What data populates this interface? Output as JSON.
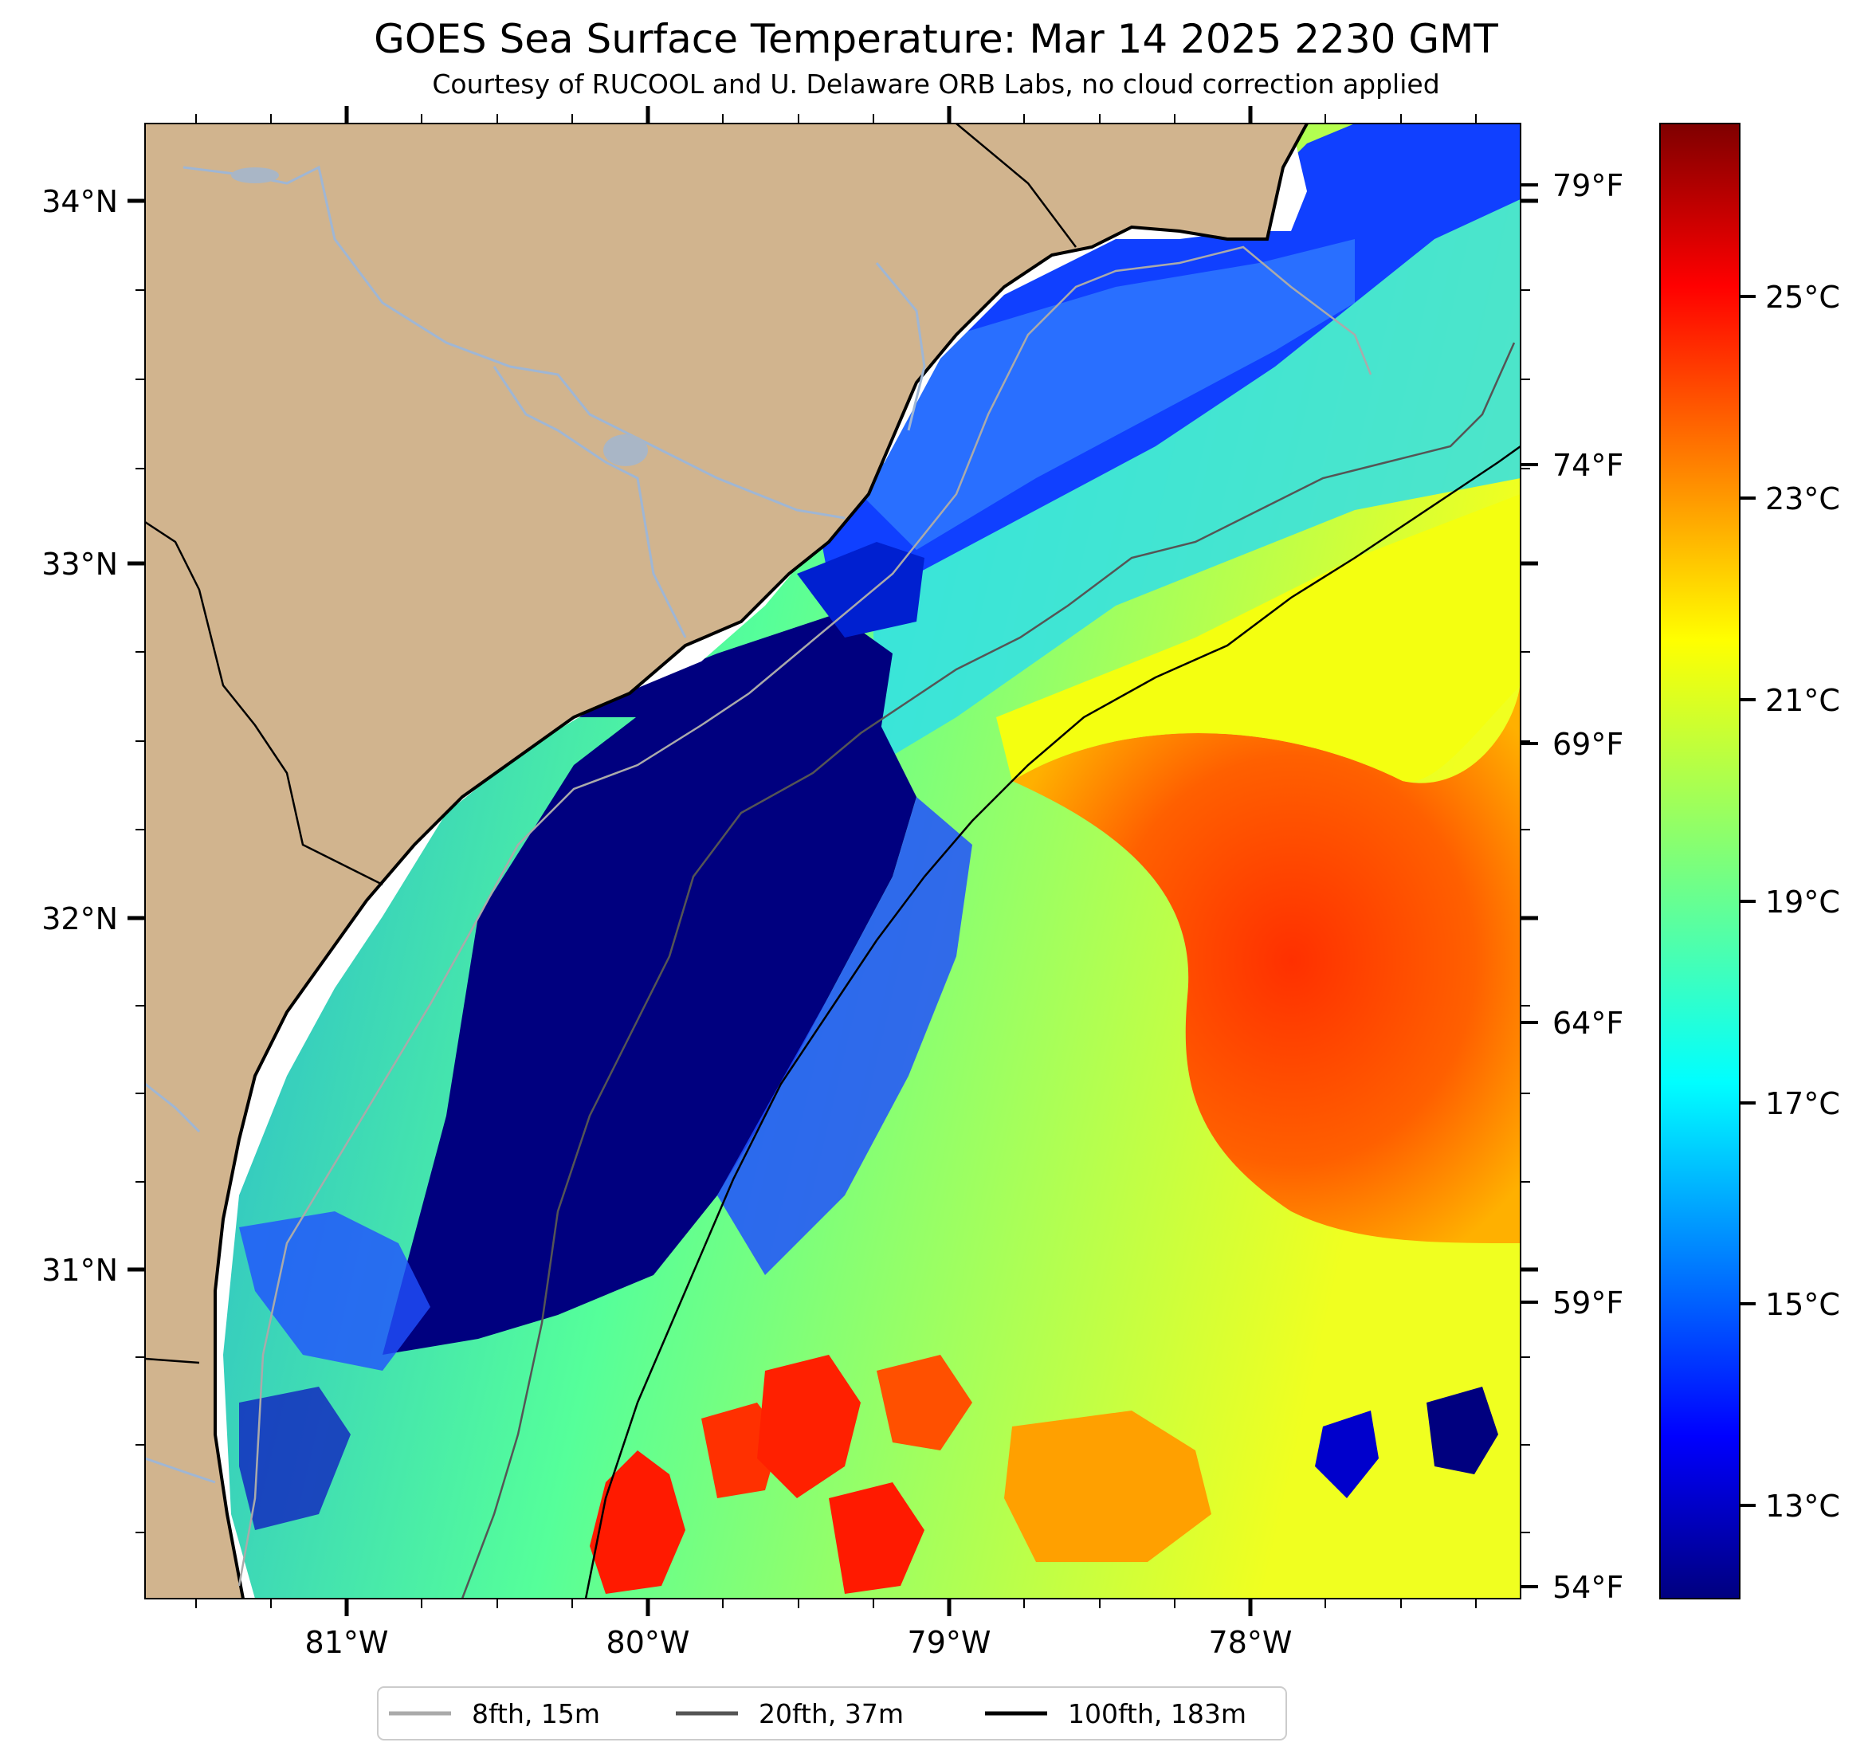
{
  "title": "GOES Sea Surface Temperature: Mar 14 2025 2230 GMT",
  "subtitle": "Courtesy of RUCOOL and U. Delaware ORB Labs, no cloud correction applied",
  "axes": {
    "lat_labels": [
      "34°N",
      "33°N",
      "32°N",
      "31°N"
    ],
    "lon_labels": [
      "81°W",
      "80°W",
      "79°W",
      "78°W"
    ],
    "lon_range": [
      -81.67,
      -77.1
    ],
    "lat_range": [
      30.09,
      34.22
    ]
  },
  "colorbar": {
    "celsius_labels": [
      "25°C",
      "23°C",
      "21°C",
      "19°C",
      "17°C",
      "15°C",
      "13°C"
    ],
    "fahrenheit_labels": [
      "79°F",
      "74°F",
      "69°F",
      "64°F",
      "59°F",
      "54°F"
    ],
    "celsius_range": [
      12,
      27
    ],
    "colormap": "jet"
  },
  "legend": {
    "items": [
      {
        "label": "8fth, 15m",
        "color": "#aaaaaa"
      },
      {
        "label": "20fth, 37m",
        "color": "#555555"
      },
      {
        "label": "100fth, 183m",
        "color": "#000000"
      }
    ]
  },
  "colors": {
    "land": "#d1b48e",
    "coast_gap": "#ffffff",
    "rivers": "#9fb6d4"
  }
}
